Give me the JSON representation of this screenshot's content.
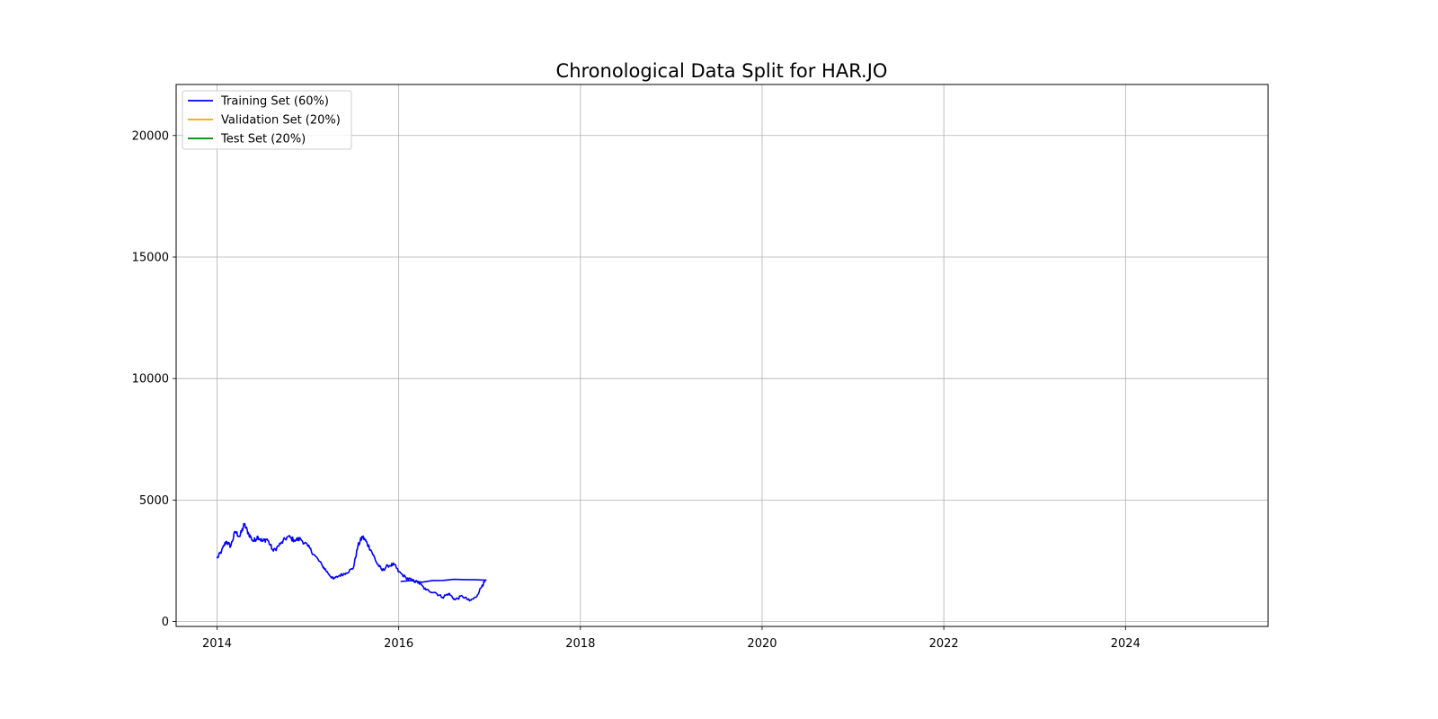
{
  "chart_data": {
    "type": "line",
    "title": "Chronological Data Split for HAR.JO",
    "xlabel": "",
    "ylabel": "",
    "xlim": [
      2013.55,
      2025.57
    ],
    "ylim": [
      -200,
      22100
    ],
    "xticks": [
      {
        "value": 2014,
        "label": "2014"
      },
      {
        "value": 2016,
        "label": "2016"
      },
      {
        "value": 2018,
        "label": "2018"
      },
      {
        "value": 2020,
        "label": "2020"
      },
      {
        "value": 2022,
        "label": "2022"
      },
      {
        "value": 2024,
        "label": "2024"
      }
    ],
    "yticks": [
      {
        "value": 0,
        "label": "0"
      },
      {
        "value": 5000,
        "label": "5000"
      },
      {
        "value": 10000,
        "label": "10000"
      },
      {
        "value": 15000,
        "label": "15000"
      },
      {
        "value": 20000,
        "label": "20000"
      }
    ],
    "grid": true,
    "legend_position": "top-left",
    "series": [
      {
        "name": "Training Set (60%)",
        "color": "#0000ff",
        "points": [
          [
            2014.0,
            2600
          ],
          [
            2014.05,
            2900
          ],
          [
            2014.1,
            3300
          ],
          [
            2014.15,
            3100
          ],
          [
            2014.2,
            3700
          ],
          [
            2014.25,
            3500
          ],
          [
            2014.3,
            4000
          ],
          [
            2014.35,
            3600
          ],
          [
            2014.4,
            3300
          ],
          [
            2014.45,
            3500
          ],
          [
            2014.5,
            3300
          ],
          [
            2014.55,
            3400
          ],
          [
            2014.62,
            2900
          ],
          [
            2014.7,
            3200
          ],
          [
            2014.78,
            3500
          ],
          [
            2014.85,
            3350
          ],
          [
            2014.92,
            3400
          ],
          [
            2015.0,
            3100
          ],
          [
            2015.08,
            2700
          ],
          [
            2015.16,
            2300
          ],
          [
            2015.22,
            2000
          ],
          [
            2015.28,
            1750
          ],
          [
            2015.35,
            1900
          ],
          [
            2015.42,
            2000
          ],
          [
            2015.5,
            2200
          ],
          [
            2015.55,
            3100
          ],
          [
            2015.6,
            3500
          ],
          [
            2015.64,
            3300
          ],
          [
            2015.7,
            2900
          ],
          [
            2015.76,
            2400
          ],
          [
            2015.82,
            2100
          ],
          [
            2015.88,
            2300
          ],
          [
            2015.95,
            2350
          ],
          [
            2016.0,
            2050
          ],
          [
            2016.08,
            1800
          ],
          [
            2016.15,
            1700
          ],
          [
            2016.22,
            1600
          ],
          [
            2016.3,
            1300
          ],
          [
            2016.4,
            1200
          ],
          [
            2016.48,
            1000
          ],
          [
            2016.55,
            1150
          ],
          [
            2016.62,
            900
          ],
          [
            2016.7,
            1050
          ],
          [
            2016.78,
            850
          ],
          [
            2016.85,
            1000
          ],
          [
            2016.92,
            1500
          ],
          [
            2016.96,
            1700
          ],
          [
            2016.02,
            1650
          ]
        ]
      },
      {
        "name": "Validation Set (20%)",
        "color": "#ffa500",
        "points": []
      },
      {
        "name": "Test Set (20%)",
        "color": "#008000",
        "points": []
      }
    ]
  }
}
